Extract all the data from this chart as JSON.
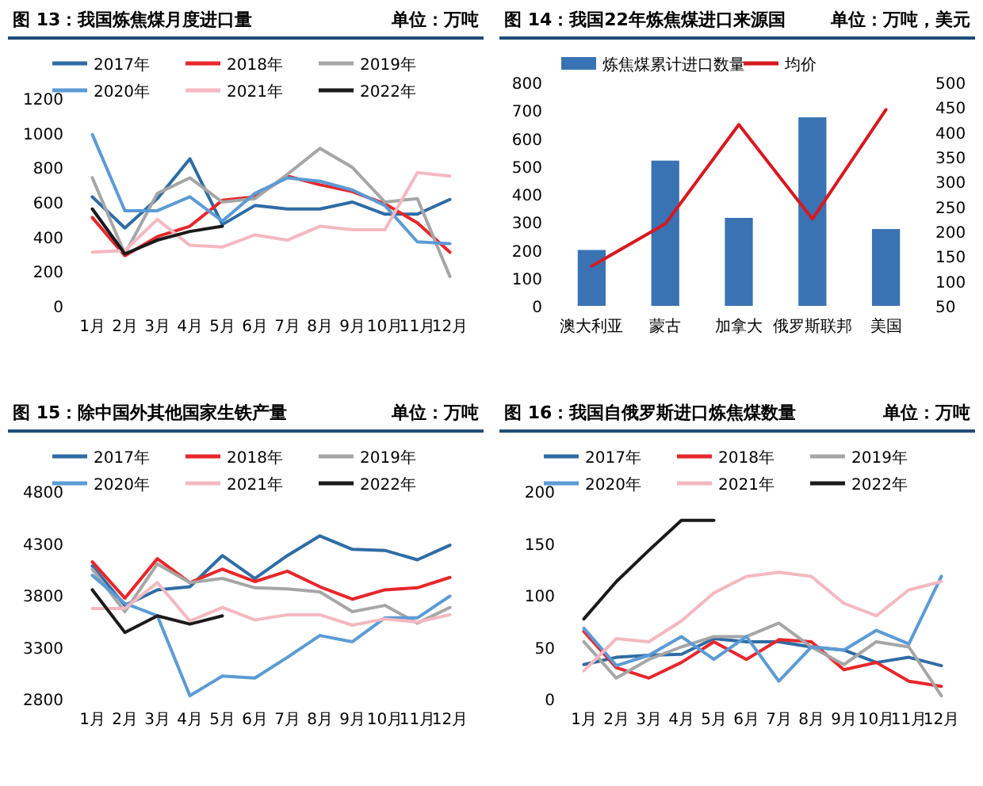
{
  "chart_data": [
    {
      "type": "line",
      "title": "图 13：我国炼焦煤月度进口量",
      "subtitle": "单位：万吨",
      "categories": [
        "1月",
        "2月",
        "3月",
        "4月",
        "5月",
        "6月",
        "7月",
        "8月",
        "9月",
        "10月",
        "11月",
        "12月"
      ],
      "ylim": [
        0,
        1200
      ],
      "yticks": [
        0,
        200,
        400,
        600,
        800,
        1000,
        1200
      ],
      "legend": "top",
      "marker": "none",
      "series": [
        {
          "name": "2017年",
          "color": "#2e6ca4",
          "values": [
            630,
            450,
            620,
            850,
            470,
            580,
            560,
            560,
            600,
            530,
            530,
            615
          ]
        },
        {
          "name": "2018年",
          "color": "#e8262b",
          "values": [
            510,
            290,
            400,
            460,
            610,
            630,
            750,
            700,
            660,
            590,
            480,
            310
          ]
        },
        {
          "name": "2019年",
          "color": "#a6a6a6",
          "values": [
            740,
            300,
            650,
            740,
            600,
            620,
            760,
            910,
            800,
            600,
            620,
            170
          ]
        },
        {
          "name": "2020年",
          "color": "#5b9bd5",
          "values": [
            990,
            550,
            550,
            630,
            490,
            650,
            740,
            720,
            670,
            580,
            370,
            360
          ]
        },
        {
          "name": "2021年",
          "color": "#f4b8c0",
          "values": [
            310,
            320,
            500,
            350,
            340,
            410,
            380,
            460,
            440,
            440,
            770,
            750
          ]
        },
        {
          "name": "2022年",
          "color": "#1a1a1a",
          "values": [
            560,
            300,
            380,
            430,
            460,
            null,
            null,
            null,
            null,
            null,
            null,
            null
          ]
        }
      ]
    },
    {
      "type": "bar",
      "title": "图 14：我国22年炼焦煤进口来源国",
      "subtitle": "单位：万吨，美元",
      "categories": [
        "澳大利亚",
        "蒙古",
        "加拿大",
        "俄罗斯联邦",
        "美国"
      ],
      "ylim": [
        0,
        800
      ],
      "yticks": [
        0,
        100,
        200,
        300,
        400,
        500,
        600,
        700,
        800
      ],
      "y2lim": [
        50,
        500
      ],
      "y2ticks": [
        50,
        100,
        150,
        200,
        250,
        300,
        350,
        400,
        450,
        500
      ],
      "legend": "top",
      "series": [
        {
          "name": "炼焦煤累计进口数量",
          "color": "#3a73b4",
          "values": [
            200,
            520,
            315,
            675,
            275
          ]
        },
        {
          "name": "均价",
          "type": "line",
          "axis": "y2",
          "color": "#d7191f",
          "values": [
            130,
            215,
            415,
            225,
            445
          ]
        }
      ]
    },
    {
      "type": "line",
      "title": "图 15：除中国外其他国家生铁产量",
      "subtitle": "单位：万吨",
      "categories": [
        "1月",
        "2月",
        "3月",
        "4月",
        "5月",
        "6月",
        "7月",
        "8月",
        "9月",
        "10月",
        "11月",
        "12月"
      ],
      "ylim": [
        2800,
        4800
      ],
      "yticks": [
        2800,
        3300,
        3800,
        4300,
        4800
      ],
      "legend": "top",
      "marker": "none",
      "series": [
        {
          "name": "2017年",
          "color": "#2e6ca4",
          "values": [
            4080,
            3700,
            3850,
            3880,
            4180,
            3960,
            4180,
            4370,
            4240,
            4230,
            4140,
            4280
          ]
        },
        {
          "name": "2018年",
          "color": "#e8262b",
          "values": [
            4120,
            3770,
            4150,
            3920,
            4050,
            3930,
            4030,
            3880,
            3760,
            3850,
            3870,
            3970
          ]
        },
        {
          "name": "2019年",
          "color": "#a6a6a6",
          "values": [
            4050,
            3640,
            4100,
            3920,
            3960,
            3870,
            3860,
            3830,
            3640,
            3700,
            3530,
            3680
          ]
        },
        {
          "name": "2020年",
          "color": "#5b9bd5",
          "values": [
            3990,
            3720,
            3600,
            2830,
            3020,
            3000,
            3200,
            3410,
            3350,
            3580,
            3580,
            3790
          ]
        },
        {
          "name": "2021年",
          "color": "#f4b8c0",
          "values": [
            3670,
            3670,
            3920,
            3550,
            3680,
            3560,
            3610,
            3610,
            3510,
            3570,
            3540,
            3610
          ]
        },
        {
          "name": "2022年",
          "color": "#1a1a1a",
          "values": [
            3850,
            3440,
            3600,
            3520,
            3600,
            null,
            null,
            null,
            null,
            null,
            null,
            null
          ]
        }
      ]
    },
    {
      "type": "line",
      "title": "图 16：我国自俄罗斯进口炼焦煤数量",
      "subtitle": "单位：万吨",
      "categories": [
        "1月",
        "2月",
        "3月",
        "4月",
        "5月",
        "6月",
        "7月",
        "8月",
        "9月",
        "10月",
        "11月",
        "12月"
      ],
      "ylim": [
        0,
        200
      ],
      "yticks": [
        0,
        50,
        100,
        150,
        200
      ],
      "legend": "top",
      "marker": "none",
      "series": [
        {
          "name": "2017年",
          "color": "#2e6ca4",
          "values": [
            33,
            40,
            42,
            43,
            58,
            55,
            55,
            50,
            47,
            35,
            40,
            32
          ]
        },
        {
          "name": "2018年",
          "color": "#e8262b",
          "values": [
            65,
            30,
            20,
            35,
            55,
            38,
            57,
            55,
            28,
            35,
            17,
            12
          ]
        },
        {
          "name": "2019年",
          "color": "#a6a6a6",
          "values": [
            55,
            20,
            38,
            50,
            60,
            60,
            73,
            50,
            33,
            55,
            50,
            3
          ]
        },
        {
          "name": "2020年",
          "color": "#5b9bd5",
          "values": [
            68,
            32,
            42,
            60,
            38,
            60,
            17,
            50,
            47,
            66,
            53,
            118
          ]
        },
        {
          "name": "2021年",
          "color": "#f4b8c0",
          "values": [
            27,
            58,
            55,
            75,
            102,
            118,
            122,
            118,
            92,
            80,
            105,
            113
          ]
        },
        {
          "name": "2022年",
          "color": "#1a1a1a",
          "values": [
            77,
            113,
            143,
            172,
            172,
            null,
            null,
            null,
            null,
            null,
            null,
            null
          ]
        }
      ]
    }
  ]
}
